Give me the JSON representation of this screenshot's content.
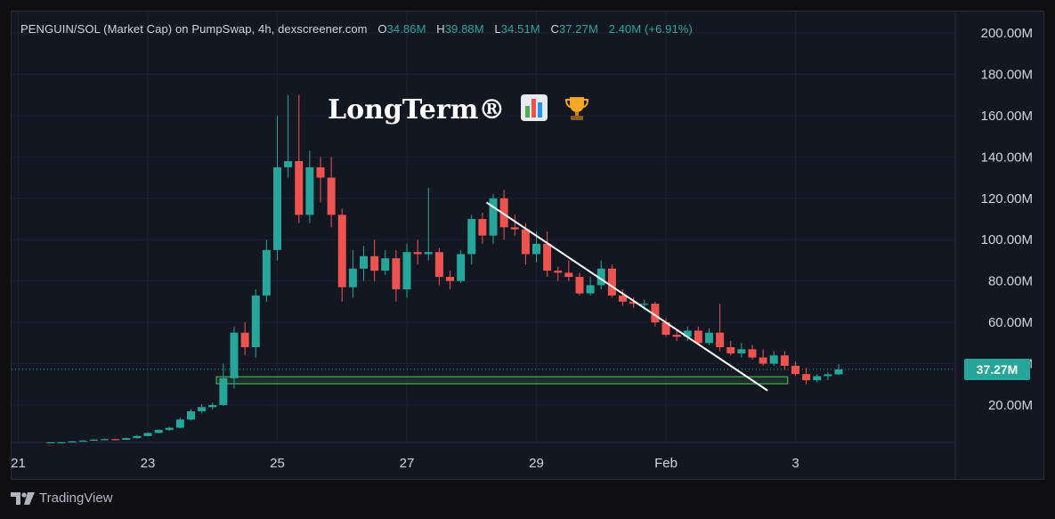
{
  "legend": {
    "symbol": "PENGUIN/SOL (Market Cap) on PumpSwap, 4h, dexscreener.com",
    "o_key": "O",
    "o_val": "34.86M",
    "h_key": "H",
    "h_val": "39.88M",
    "l_key": "L",
    "l_val": "34.51M",
    "c_key": "C",
    "c_val": "37.27M",
    "change": "2.40M (+6.91%)"
  },
  "watermark": "LongTerm®",
  "last_price": "37.27M",
  "branding": "TradingView",
  "colors": {
    "up": "#26a69a",
    "down": "#ef5350",
    "background": "#131722",
    "support_zone": "#4caf50",
    "trendline": "#ffffff"
  },
  "chart_data": {
    "type": "candlestick",
    "ylim": [
      8,
      203
    ],
    "y_ticks": [
      "20.00M",
      "40.00M",
      "60.00M",
      "80.00M",
      "100.00M",
      "120.00M",
      "140.00M",
      "160.00M",
      "180.00M",
      "200.00M"
    ],
    "y_unit": "M",
    "x_ticks": [
      "21",
      "23",
      "25",
      "27",
      "29",
      "Feb",
      "3"
    ],
    "x_tick_days": [
      21,
      23,
      25,
      27,
      29,
      31,
      33
    ],
    "candles_per_day": 6,
    "first_candle_day": 21.5,
    "candles": [
      [
        2,
        2,
        2,
        2
      ],
      [
        2,
        2,
        2.2,
        2
      ],
      [
        2,
        2.4,
        2.6,
        2
      ],
      [
        2.4,
        2.8,
        3,
        2.3
      ],
      [
        2.8,
        3.3,
        3.5,
        2.7
      ],
      [
        3.3,
        3.5,
        3.8,
        3.1
      ],
      [
        3.5,
        3.2,
        3.6,
        3
      ],
      [
        3.2,
        4,
        4.2,
        3.1
      ],
      [
        4,
        5,
        5.5,
        3.9
      ],
      [
        5,
        6.5,
        6.8,
        4.8
      ],
      [
        6.5,
        8,
        8.2,
        6.3
      ],
      [
        8,
        9,
        9.5,
        7.5
      ],
      [
        9,
        13,
        14,
        8.8
      ],
      [
        13,
        17,
        18,
        12.5
      ],
      [
        17,
        19,
        20.5,
        16
      ],
      [
        19,
        20,
        21,
        18
      ],
      [
        20,
        33,
        40,
        19.5
      ],
      [
        33,
        55,
        58,
        28
      ],
      [
        55,
        48,
        60,
        44
      ],
      [
        48,
        73,
        76,
        43
      ],
      [
        73,
        95,
        100,
        70
      ],
      [
        95,
        135,
        160,
        90
      ],
      [
        135,
        138,
        170,
        130
      ],
      [
        138,
        112,
        170,
        108
      ],
      [
        112,
        135,
        143,
        108
      ],
      [
        135,
        130,
        140,
        118
      ],
      [
        130,
        112,
        140,
        106
      ],
      [
        112,
        77,
        115,
        70
      ],
      [
        77,
        86,
        95,
        72
      ],
      [
        86,
        92,
        97,
        80
      ],
      [
        92,
        85,
        100,
        80
      ],
      [
        85,
        91,
        95,
        83
      ],
      [
        91,
        76,
        95,
        70
      ],
      [
        76,
        94,
        98,
        72
      ],
      [
        94,
        93,
        100,
        88
      ],
      [
        93,
        94,
        125,
        90
      ],
      [
        94,
        82,
        96,
        78
      ],
      [
        82,
        80,
        85,
        76
      ],
      [
        80,
        93,
        95,
        79
      ],
      [
        93,
        110,
        112,
        88
      ],
      [
        110,
        102,
        113,
        98
      ],
      [
        102,
        120,
        122,
        98
      ],
      [
        120,
        106,
        124,
        100
      ],
      [
        106,
        105,
        112,
        102
      ],
      [
        105,
        93,
        108,
        88
      ],
      [
        93,
        98,
        104,
        89
      ],
      [
        98,
        85,
        104,
        82
      ],
      [
        85,
        84,
        87,
        80
      ],
      [
        84,
        82,
        90,
        80
      ],
      [
        82,
        74,
        84,
        73
      ],
      [
        74,
        78,
        82,
        73
      ],
      [
        78,
        86,
        90,
        76
      ],
      [
        86,
        73,
        88,
        72
      ],
      [
        73,
        70,
        76,
        68
      ],
      [
        70,
        69,
        72,
        67
      ],
      [
        69,
        69,
        71,
        66
      ],
      [
        69,
        60,
        70,
        58
      ],
      [
        60,
        54,
        62,
        53
      ],
      [
        54,
        53,
        56,
        51
      ],
      [
        53,
        56,
        58,
        51
      ],
      [
        56,
        50,
        58,
        49
      ],
      [
        50,
        55,
        57,
        49
      ],
      [
        55,
        48,
        69,
        46
      ],
      [
        48,
        45,
        51,
        44
      ],
      [
        45,
        47,
        50,
        43
      ],
      [
        47,
        43,
        49,
        42
      ],
      [
        43,
        40,
        47,
        39
      ],
      [
        40,
        44,
        46,
        39
      ],
      [
        44,
        39,
        46,
        37
      ],
      [
        39,
        35,
        41,
        34
      ],
      [
        35,
        32,
        38,
        30
      ],
      [
        32,
        34,
        35,
        31
      ],
      [
        34,
        34.9,
        36,
        32
      ],
      [
        34.86,
        37.27,
        39.88,
        34.51
      ]
    ],
    "trendline": {
      "start": {
        "day": 28.23,
        "value": 118
      },
      "end": {
        "day": 32.57,
        "value": 27
      }
    },
    "support_zone": {
      "start_day": 24.06,
      "end_day": 32.88,
      "low": 30.3,
      "high": 33.7
    },
    "last_value": 37.27
  }
}
